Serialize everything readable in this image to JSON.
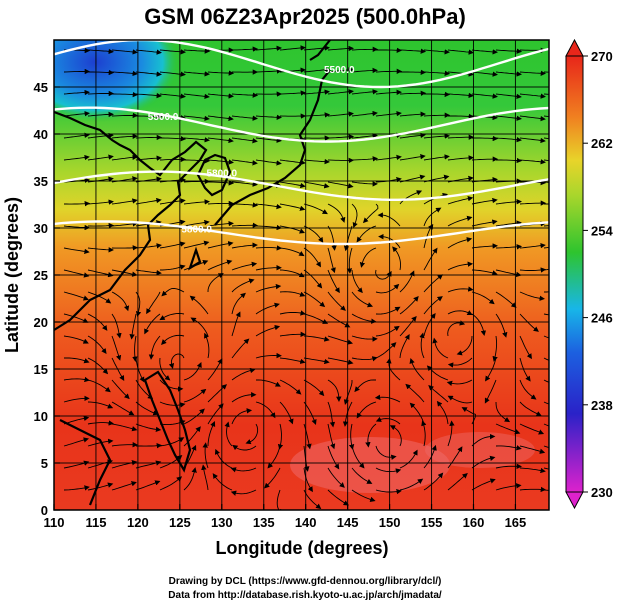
{
  "title": "GSM 06Z23Apr2025 (500.0hPa)",
  "xlabel": "Longitude (degrees)",
  "ylabel": "Latitude (degrees)",
  "credits": [
    "Drawing by DCL (https://www.gfd-dennou.org/library/dcl/)",
    "Data from http://database.rish.kyoto-u.ac.jp/arch/jmadata/"
  ],
  "x_ticks": [
    "110",
    "115",
    "120",
    "125",
    "130",
    "135",
    "140",
    "145",
    "150",
    "155",
    "160",
    "165"
  ],
  "y_ticks": [
    "0",
    "5",
    "10",
    "15",
    "20",
    "25",
    "30",
    "35",
    "40",
    "45"
  ],
  "colorbar_ticks": [
    "230",
    "238",
    "246",
    "254",
    "262",
    "270"
  ],
  "colors": {
    "low": "#dd22cc",
    "cold": "#1c3fd0",
    "cyan": "#18b6e8",
    "green": "#2ec42e",
    "yellow": "#e8d42a",
    "orange": "#f08020",
    "red": "#e8261a",
    "contour": "#ffffff",
    "streamline": "#000000"
  },
  "chart_data": {
    "type": "heatmap",
    "title": "GSM 06Z23Apr2025 (500.0hPa)",
    "xlabel": "Longitude (degrees)",
    "ylabel": "Latitude (degrees)",
    "xlim": [
      110,
      169
    ],
    "ylim": [
      0,
      50
    ],
    "variable": "temperature (K) at 500 hPa with wind streamlines",
    "colorbar": {
      "min": 230,
      "max": 270,
      "ticks": [
        230,
        238,
        246,
        254,
        262,
        270
      ]
    },
    "contour_labels": [
      {
        "text": "5500.0",
        "lon": 144,
        "lat": 46.5
      },
      {
        "text": "5500.0",
        "lon": 123,
        "lat": 41.5
      },
      {
        "text": "5800.0",
        "lon": 130,
        "lat": 35.5
      },
      {
        "text": "5800.0",
        "lon": 127,
        "lat": 29.5
      }
    ],
    "contours": [
      {
        "lat_base": 47.5,
        "lat_amp": 2.5,
        "phase": 0.4
      },
      {
        "lat_base": 41.0,
        "lat_amp": 1.8,
        "phase": 1.1
      },
      {
        "lat_base": 34.5,
        "lat_amp": 1.5,
        "phase": 0.2
      },
      {
        "lat_base": 29.5,
        "lat_amp": 1.2,
        "phase": 0.9
      }
    ]
  }
}
